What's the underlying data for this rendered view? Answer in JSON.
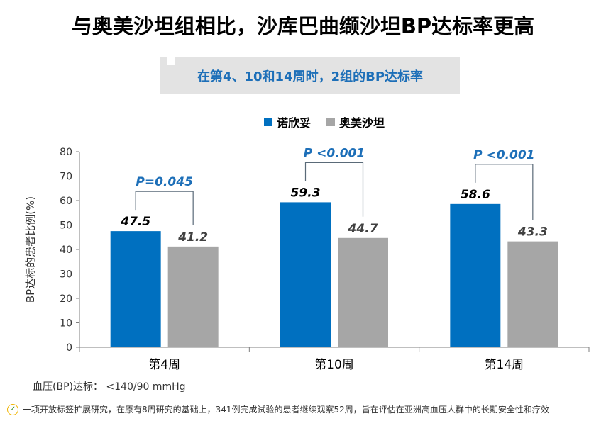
{
  "title": "与奥美沙坦组相比，沙库巴曲缬沙坦BP达标率更高",
  "subtitle": "在第4、10和14周时，2组的BP达标率",
  "criterion": "血压(BP)达标：  <140/90 mmHg",
  "footnote": "一项开放标签扩展研究，在原有8周研究的基础上，341例完成试验的患者继续观察52周，旨在评估在亚洲高血压人群中的长期安全性和疗效",
  "colors": {
    "series1": "#0070c0",
    "series2": "#a6a6a6",
    "pvalue": "#1d6fb8",
    "bracket": "#5a6a78"
  },
  "chart_data": {
    "type": "bar",
    "categories": [
      "第4周",
      "第10周",
      "第14周"
    ],
    "series": [
      {
        "name": "诺欣妥",
        "values": [
          47.5,
          59.3,
          58.6
        ],
        "labels": [
          "47.5",
          "59.3",
          "58.6"
        ]
      },
      {
        "name": "奥美沙坦",
        "values": [
          41.2,
          44.7,
          43.3
        ],
        "labels": [
          "41.2",
          "44.7",
          "43.3"
        ]
      }
    ],
    "p_values": [
      "P=0.045",
      "P <0.001",
      "P <0.001"
    ],
    "ylabel": "BP达标的患者比例(%)",
    "ylim": [
      0,
      80
    ],
    "yticks": [
      "0",
      "10",
      "20",
      "30",
      "40",
      "50",
      "60",
      "70",
      "80"
    ],
    "legend": "top-center",
    "grid": false
  }
}
